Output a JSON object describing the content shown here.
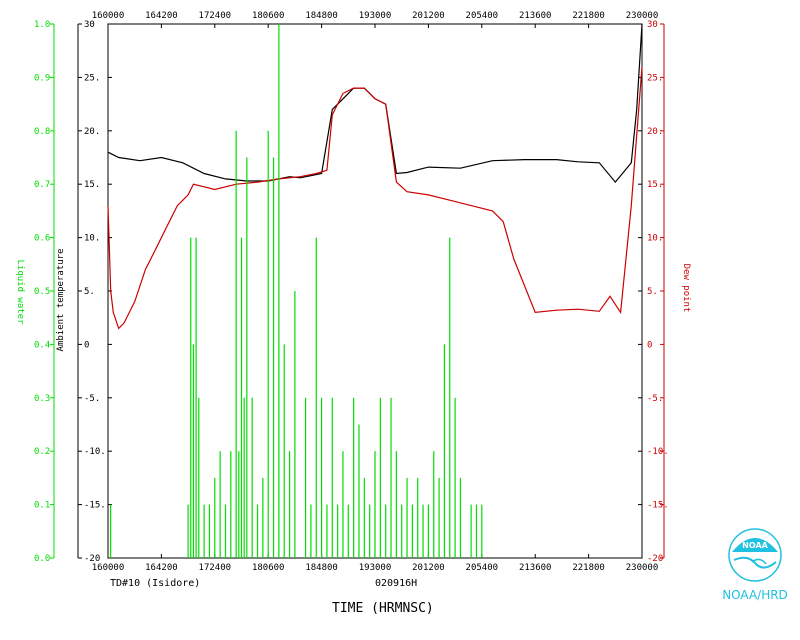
{
  "chart_data": {
    "type": "line",
    "xlabel": "TIME (HRMNSC)",
    "x_ticks": [
      "160000",
      "164200",
      "172400",
      "180600",
      "184800",
      "193000",
      "201200",
      "205400",
      "213600",
      "221800",
      "230000"
    ],
    "left_axis": {
      "label": "Ambient temperature",
      "ylim": [
        -20,
        30
      ],
      "ticks": [
        "-20",
        "-15",
        "-10",
        "-5",
        "0",
        "5",
        "10",
        "15",
        "20",
        "25",
        "30"
      ],
      "tick_labels_display": [
        "-20",
        "-15.",
        "-10.",
        "-5.",
        "0",
        "5.",
        "10.",
        "15.",
        "20.",
        "25.",
        "30"
      ],
      "color": "#000000"
    },
    "right_axis": {
      "label": "Dew point",
      "ylim": [
        -20,
        30
      ],
      "tick_labels_display": [
        "-20",
        "-15.",
        "-10.",
        "-5.",
        "0",
        "5.",
        "10.",
        "15.",
        "20.",
        "25.",
        "30"
      ],
      "color": "#cc0000"
    },
    "lwc_axis": {
      "label": "Liquid water",
      "ylim": [
        0.0,
        1.0
      ],
      "tick_labels_display": [
        "0.0",
        "0.1",
        "0.2",
        "0.3",
        "0.4",
        "0.5",
        "0.6",
        "0.7",
        "0.8",
        "0.9",
        "1.0"
      ],
      "color": "#00dd00"
    },
    "series": [
      {
        "name": "Ambient temperature",
        "color": "#000000",
        "x_frac": [
          0,
          0.02,
          0.06,
          0.1,
          0.14,
          0.18,
          0.22,
          0.26,
          0.3,
          0.34,
          0.36,
          0.38,
          0.4,
          0.42,
          0.44,
          0.46,
          0.48,
          0.5,
          0.52,
          0.54,
          0.56,
          0.6,
          0.66,
          0.72,
          0.78,
          0.84,
          0.88,
          0.92,
          0.95,
          0.96,
          0.98,
          0.99,
          1.0
        ],
        "values": [
          18,
          17.5,
          17.2,
          17.5,
          17,
          16,
          15.5,
          15.3,
          15.3,
          15.7,
          15.6,
          15.8,
          16,
          22,
          23,
          24,
          24,
          23,
          22.5,
          16,
          16.1,
          16.6,
          16.5,
          17.2,
          17.3,
          17.3,
          17.1,
          17.0,
          15.2,
          15.8,
          17,
          22,
          30
        ]
      },
      {
        "name": "Dew point",
        "color": "#cc0000",
        "x_frac": [
          0,
          0.005,
          0.01,
          0.02,
          0.03,
          0.05,
          0.07,
          0.09,
          0.11,
          0.13,
          0.15,
          0.16,
          0.2,
          0.24,
          0.28,
          0.32,
          0.36,
          0.39,
          0.41,
          0.42,
          0.44,
          0.46,
          0.48,
          0.5,
          0.52,
          0.54,
          0.56,
          0.6,
          0.64,
          0.68,
          0.72,
          0.74,
          0.76,
          0.8,
          0.84,
          0.88,
          0.92,
          0.94,
          0.96,
          0.98,
          1.0
        ],
        "values": [
          13,
          5,
          3,
          1.5,
          2,
          4,
          7,
          9,
          11,
          13,
          14,
          15,
          14.5,
          15,
          15.2,
          15.5,
          15.7,
          16,
          16.3,
          21.5,
          23.5,
          24,
          24,
          23,
          22.5,
          15.2,
          14.3,
          14,
          13.5,
          13,
          12.5,
          11.5,
          8,
          3,
          3.2,
          3.3,
          3.1,
          4.5,
          3,
          13,
          26
        ]
      },
      {
        "name": "Liquid water",
        "color": "#00dd00",
        "type": "spikes",
        "x_frac": [
          0.005,
          0.15,
          0.155,
          0.16,
          0.165,
          0.17,
          0.18,
          0.19,
          0.2,
          0.21,
          0.22,
          0.23,
          0.24,
          0.245,
          0.25,
          0.255,
          0.26,
          0.27,
          0.28,
          0.29,
          0.3,
          0.31,
          0.32,
          0.33,
          0.34,
          0.35,
          0.37,
          0.38,
          0.39,
          0.4,
          0.41,
          0.42,
          0.43,
          0.44,
          0.45,
          0.46,
          0.47,
          0.48,
          0.49,
          0.5,
          0.51,
          0.52,
          0.53,
          0.54,
          0.55,
          0.56,
          0.57,
          0.58,
          0.59,
          0.6,
          0.61,
          0.62,
          0.63,
          0.64,
          0.65,
          0.66,
          0.68,
          0.69,
          0.7
        ],
        "values": [
          0.1,
          0.1,
          0.6,
          0.4,
          0.6,
          0.3,
          0.1,
          0.1,
          0.15,
          0.2,
          0.1,
          0.2,
          0.8,
          0.2,
          0.6,
          0.3,
          0.75,
          0.3,
          0.1,
          0.15,
          0.8,
          0.75,
          1.0,
          0.4,
          0.2,
          0.5,
          0.3,
          0.1,
          0.6,
          0.3,
          0.1,
          0.3,
          0.1,
          0.2,
          0.1,
          0.3,
          0.25,
          0.15,
          0.1,
          0.2,
          0.3,
          0.1,
          0.3,
          0.2,
          0.1,
          0.15,
          0.1,
          0.15,
          0.1,
          0.1,
          0.2,
          0.15,
          0.4,
          0.6,
          0.3,
          0.15,
          0.1,
          0.1,
          0.1
        ]
      }
    ]
  },
  "footer": {
    "flight_id": "TD#10 (Isidore)",
    "date": "020916H",
    "xlabel": "TIME (HRMNSC)",
    "org": "NOAA/HRD"
  },
  "logo": {
    "text": "NOAA",
    "color": "#20c0e0"
  }
}
